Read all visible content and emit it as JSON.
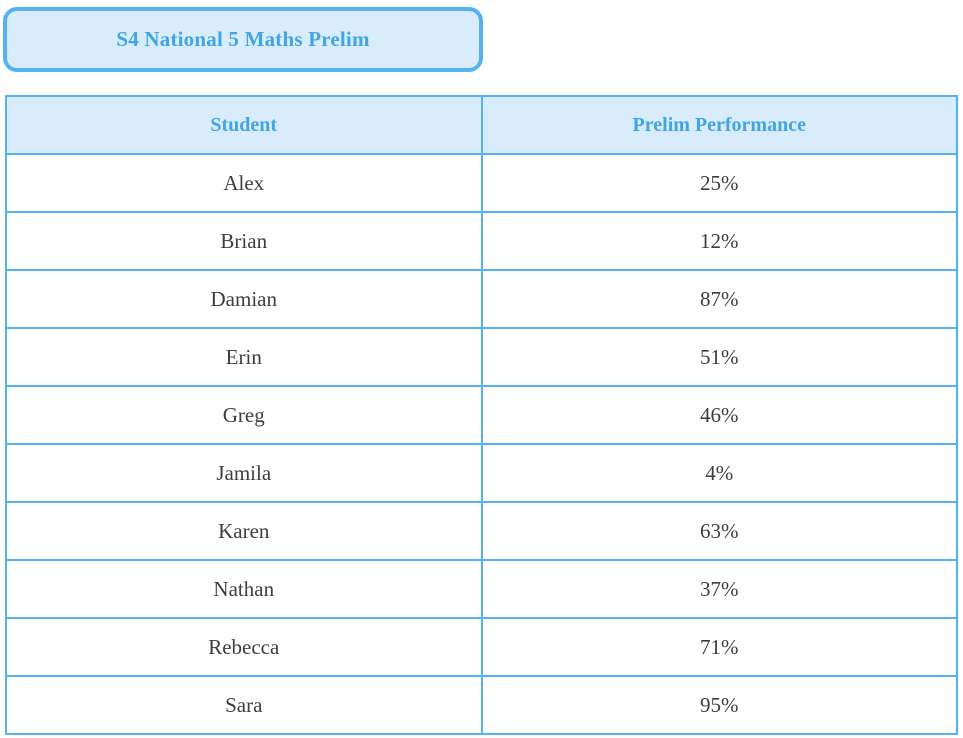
{
  "title": {
    "label": "S4 National 5 Maths Prelim"
  },
  "colors": {
    "accent_border": "#55b2f2",
    "light_fill": "#d9ecfb",
    "heading_text": "#41a4e5",
    "body_text": "#3d3d3d",
    "background": "#ffffff"
  },
  "table": {
    "columns": [
      "Student",
      "Prelim Performance"
    ],
    "rows": [
      {
        "student": "Alex",
        "performance": "25%"
      },
      {
        "student": "Brian",
        "performance": "12%"
      },
      {
        "student": "Damian",
        "performance": "87%"
      },
      {
        "student": "Erin",
        "performance": "51%"
      },
      {
        "student": "Greg",
        "performance": "46%"
      },
      {
        "student": "Jamila",
        "performance": "4%"
      },
      {
        "student": "Karen",
        "performance": "63%"
      },
      {
        "student": "Nathan",
        "performance": "37%"
      },
      {
        "student": "Rebecca",
        "performance": "71%"
      },
      {
        "student": "Sara",
        "performance": "95%"
      }
    ]
  },
  "chart_data": {
    "type": "table",
    "title": "S4 National 5 Maths Prelim",
    "columns": [
      "Student",
      "Prelim Performance"
    ],
    "categories": [
      "Alex",
      "Brian",
      "Damian",
      "Erin",
      "Greg",
      "Jamila",
      "Karen",
      "Nathan",
      "Rebecca",
      "Sara"
    ],
    "values": [
      25,
      12,
      87,
      51,
      46,
      4,
      63,
      37,
      71,
      95
    ],
    "value_unit": "%"
  }
}
